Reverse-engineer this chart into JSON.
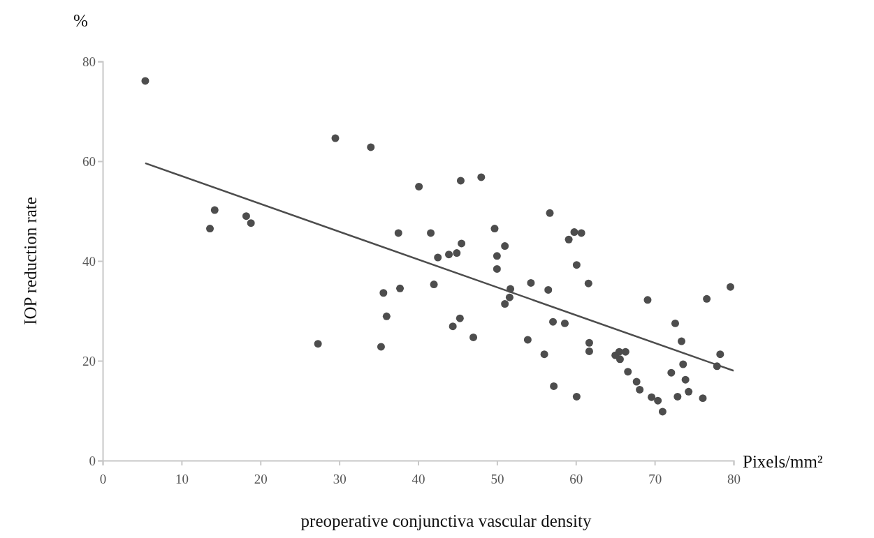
{
  "chart_data": {
    "type": "scatter",
    "xlabel": "preoperative conjunctiva vascular density",
    "ylabel": "IOP reduction rate",
    "annotations": [
      "%",
      "Pixels/mm²"
    ],
    "xlim": [
      0,
      80
    ],
    "xticks": [
      0,
      10,
      20,
      30,
      40,
      50,
      60,
      70,
      80
    ],
    "ylim": [
      0,
      80
    ],
    "yticks": [
      0,
      20,
      40,
      60,
      80
    ],
    "grid": false,
    "marker": "circle",
    "series": [
      {
        "color": "#4d4d4d",
        "x": [
          5.4,
          29.5,
          34.0,
          40.1,
          45.4,
          48.0,
          14.2,
          13.6,
          18.2,
          18.8,
          37.5,
          35.6,
          37.7,
          36.0,
          27.3,
          35.3,
          56.7,
          41.6,
          49.7,
          45.5,
          42.5,
          43.9,
          44.9,
          51.0,
          50.0,
          50.0,
          59.8,
          60.7,
          59.1,
          60.1,
          61.6,
          42.0,
          51.7,
          51.6,
          51.0,
          54.3,
          56.5,
          79.6,
          69.1,
          76.6,
          45.3,
          44.4,
          47.0,
          57.1,
          58.6,
          72.6,
          53.9,
          56.0,
          61.7,
          61.7,
          73.4,
          65.0,
          65.5,
          66.3,
          65.6,
          78.3,
          77.9,
          73.6,
          66.6,
          72.1,
          67.7,
          73.9,
          68.1,
          74.3,
          57.2,
          60.1,
          69.6,
          70.4,
          72.9,
          76.1,
          71.0
        ],
        "values": [
          76.1,
          64.6,
          62.8,
          54.9,
          56.1,
          56.8,
          50.2,
          46.5,
          49.0,
          47.6,
          45.6,
          33.6,
          34.5,
          28.9,
          23.4,
          22.8,
          49.6,
          45.6,
          46.5,
          43.5,
          40.7,
          41.3,
          41.6,
          43.0,
          41.0,
          38.4,
          45.8,
          45.6,
          44.3,
          39.2,
          35.5,
          35.3,
          34.4,
          32.7,
          31.4,
          35.6,
          34.2,
          34.8,
          32.2,
          32.4,
          28.5,
          26.9,
          24.7,
          27.8,
          27.5,
          27.5,
          24.2,
          21.3,
          23.6,
          21.9,
          23.9,
          21.1,
          21.8,
          21.8,
          20.3,
          21.3,
          18.9,
          19.3,
          17.8,
          17.6,
          15.8,
          16.2,
          14.2,
          13.8,
          14.9,
          12.8,
          12.7,
          12.0,
          12.8,
          12.5,
          9.8
        ]
      },
      {
        "type": "line",
        "color": "#4d4d4d",
        "line_style": "solid",
        "marker": "none",
        "x": [
          5.4,
          80
        ],
        "values": [
          59.6,
          18.0
        ]
      }
    ]
  }
}
